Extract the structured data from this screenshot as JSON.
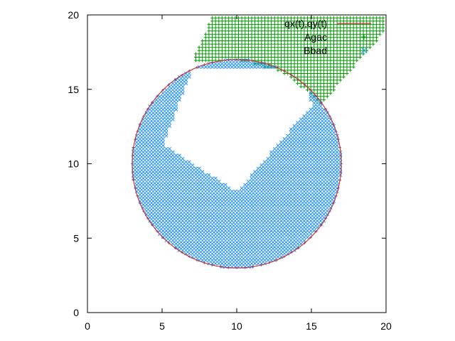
{
  "chart_data": {
    "type": "scatter",
    "title": "",
    "xlabel": "",
    "ylabel": "",
    "xlim": [
      0,
      20
    ],
    "ylim": [
      0,
      20
    ],
    "x_ticks": [
      "0",
      "5",
      "10",
      "15",
      "20"
    ],
    "y_ticks": [
      "0",
      "5",
      "10",
      "15",
      "20"
    ],
    "grid": false,
    "legend_position": "top-right",
    "legend": [
      {
        "label": "qx(t),qy(t)",
        "style": "line",
        "color": "#c0392b"
      },
      {
        "label": "Agac",
        "style": "plus-grid",
        "color": "#009900"
      },
      {
        "label": "Bbad",
        "style": "x-grid",
        "color": "#1e90ff"
      }
    ],
    "series": [
      {
        "kind": "parametric-circle",
        "center": [
          10,
          10
        ],
        "radius": 7,
        "line_color": "#c0392b",
        "marker_color": "#7b4aa8"
      },
      {
        "kind": "region-polygon",
        "polygon": [
          [
            20,
            20
          ],
          [
            8.4,
            20
          ],
          [
            7,
            16.8
          ],
          [
            10,
            17
          ],
          [
            13,
            16.2
          ],
          [
            15.7,
            14
          ],
          [
            20,
            19
          ]
        ],
        "marker": "plus",
        "color": "#009900"
      },
      {
        "kind": "region-disk-minus-wedge",
        "center": [
          10,
          10
        ],
        "radius": 7,
        "cut_polygon": [
          [
            7,
            16.3
          ],
          [
            5.1,
            11.3
          ],
          [
            10,
            8.1
          ],
          [
            15,
            13.9
          ],
          [
            14.5,
            16.5
          ]
        ],
        "marker": "cross",
        "color": "#1e90ff"
      }
    ]
  }
}
